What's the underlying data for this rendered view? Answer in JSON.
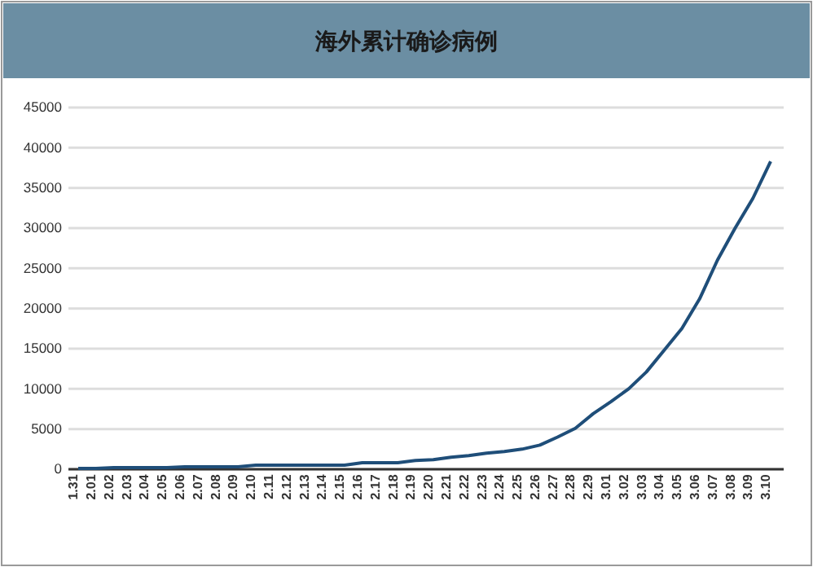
{
  "chart_data": {
    "type": "line",
    "title": "海外累计确诊病例",
    "categories": [
      "1.31",
      "2.01",
      "2.02",
      "2.03",
      "2.04",
      "2.05",
      "2.06",
      "2.07",
      "2.08",
      "2.09",
      "2.10",
      "2.11",
      "2.12",
      "2.13",
      "2.14",
      "2.15",
      "2.16",
      "2.17",
      "2.18",
      "2.19",
      "2.20",
      "2.21",
      "2.22",
      "2.23",
      "2.24",
      "2.25",
      "2.26",
      "2.27",
      "2.28",
      "2.29",
      "3.01",
      "3.02",
      "3.03",
      "3.04",
      "3.05",
      "3.06",
      "3.07",
      "3.08",
      "3.09",
      "3.10"
    ],
    "series": [
      {
        "color": "#1f4e79",
        "values": [
          100,
          100,
          200,
          200,
          200,
          200,
          300,
          300,
          300,
          300,
          500,
          500,
          500,
          500,
          500,
          500,
          800,
          800,
          800,
          1100,
          1200,
          1500,
          1700,
          2000,
          2200,
          2500,
          3000,
          4000,
          5100,
          6900,
          8400,
          10000,
          12100,
          14800,
          17500,
          21200,
          26000,
          30000,
          33700,
          38300
        ]
      }
    ],
    "ylim": [
      0,
      45000
    ],
    "yticks": [
      0,
      5000,
      10000,
      15000,
      20000,
      25000,
      30000,
      35000,
      40000,
      45000
    ],
    "grid": "y",
    "marker": "none",
    "line_style": "solid"
  }
}
